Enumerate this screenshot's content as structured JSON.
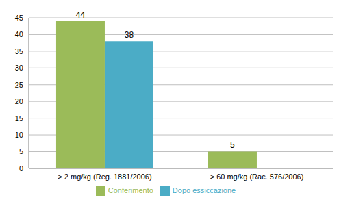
{
  "chart_data": {
    "type": "bar",
    "categories": [
      "> 2 mg/kg (Reg. 1881/2006)",
      "> 60 mg/kg (Rac. 576/2006)"
    ],
    "series": [
      {
        "name": "Conferimento",
        "color": "#9bbb59",
        "values": [
          44,
          5
        ]
      },
      {
        "name": "Dopo essiccazione",
        "color": "#4bacc6",
        "values": [
          38,
          0
        ]
      }
    ],
    "ylim": [
      0,
      45
    ],
    "yticks": [
      0,
      5,
      10,
      15,
      20,
      25,
      30,
      35,
      40,
      45
    ],
    "grid": true,
    "legend": "bottom",
    "data_labels": true
  }
}
